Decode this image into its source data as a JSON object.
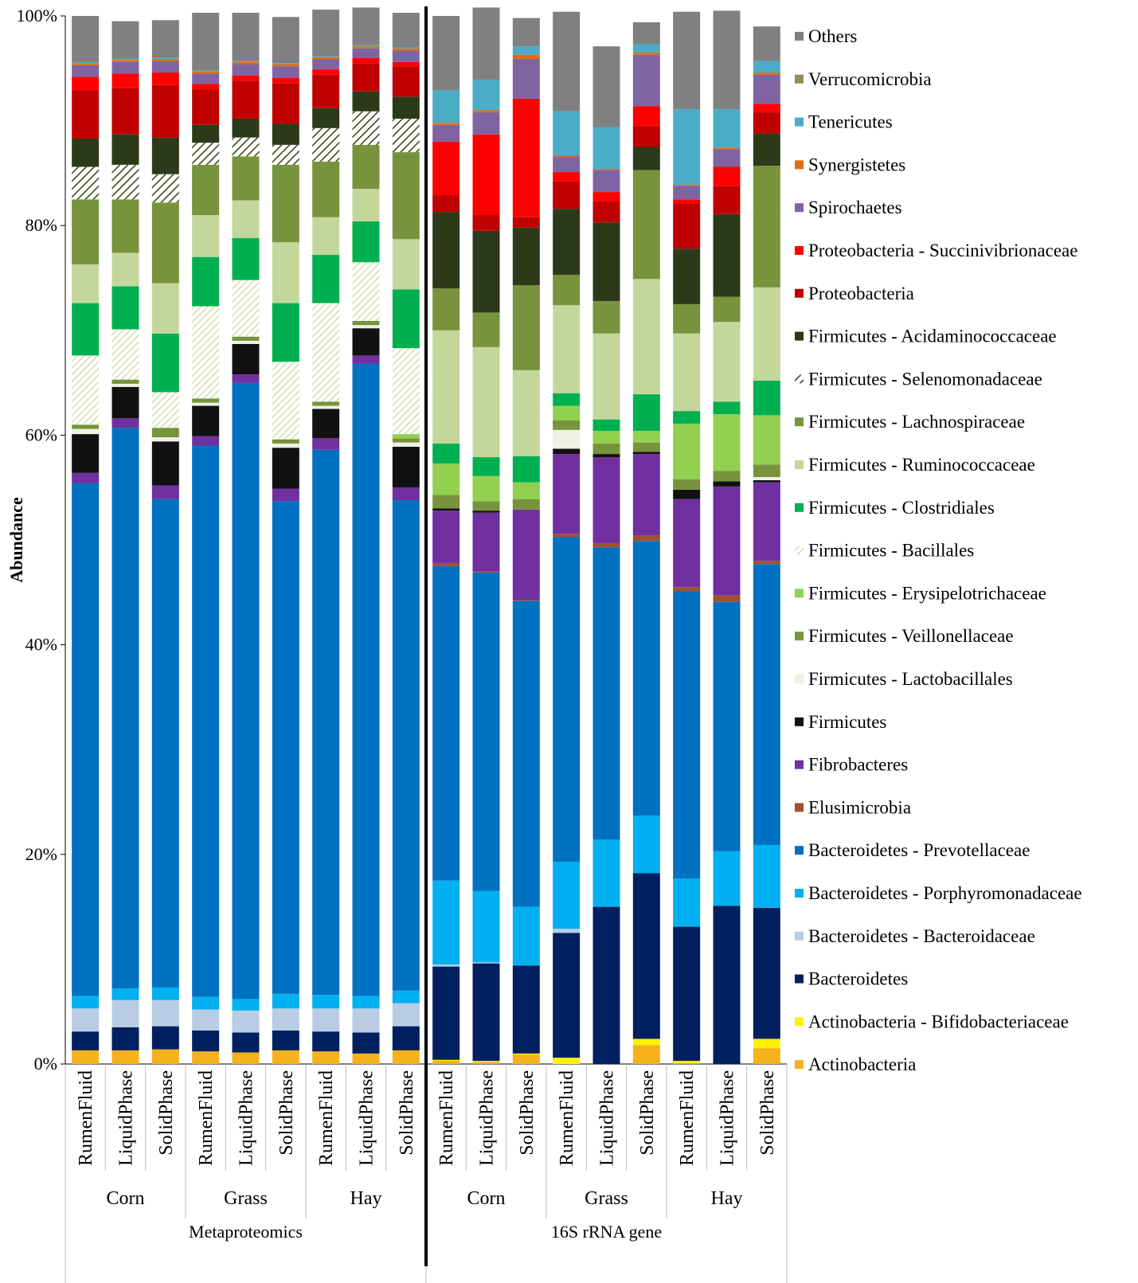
{
  "chart_data": {
    "type": "bar",
    "stacked": true,
    "ylabel": "Abundance",
    "ylim": [
      0,
      100
    ],
    "yticks": [
      "0%",
      "20%",
      "40%",
      "60%",
      "80%",
      "100%"
    ],
    "categories": [
      {
        "method": "Metaproteomics",
        "diet": "Corn",
        "phase": "RumenFluid"
      },
      {
        "method": "Metaproteomics",
        "diet": "Corn",
        "phase": "LiquidPhase"
      },
      {
        "method": "Metaproteomics",
        "diet": "Corn",
        "phase": "SolidPhase"
      },
      {
        "method": "Metaproteomics",
        "diet": "Grass",
        "phase": "RumenFluid"
      },
      {
        "method": "Metaproteomics",
        "diet": "Grass",
        "phase": "LiquidPhase"
      },
      {
        "method": "Metaproteomics",
        "diet": "Grass",
        "phase": "SolidPhase"
      },
      {
        "method": "Metaproteomics",
        "diet": "Hay",
        "phase": "RumenFluid"
      },
      {
        "method": "Metaproteomics",
        "diet": "Hay",
        "phase": "LiquidPhase"
      },
      {
        "method": "Metaproteomics",
        "diet": "Hay",
        "phase": "SolidPhase"
      },
      {
        "method": "16S rRNA gene",
        "diet": "Corn",
        "phase": "RumenFluid"
      },
      {
        "method": "16S rRNA gene",
        "diet": "Corn",
        "phase": "LiquidPhase"
      },
      {
        "method": "16S rRNA gene",
        "diet": "Corn",
        "phase": "SolidPhase"
      },
      {
        "method": "16S rRNA gene",
        "diet": "Grass",
        "phase": "RumenFluid"
      },
      {
        "method": "16S rRNA gene",
        "diet": "Grass",
        "phase": "LiquidPhase"
      },
      {
        "method": "16S rRNA gene",
        "diet": "Grass",
        "phase": "SolidPhase"
      },
      {
        "method": "16S rRNA gene",
        "diet": "Hay",
        "phase": "RumenFluid"
      },
      {
        "method": "16S rRNA gene",
        "diet": "Hay",
        "phase": "LiquidPhase"
      },
      {
        "method": "16S rRNA gene",
        "diet": "Hay",
        "phase": "SolidPhase"
      }
    ],
    "diet_groups": [
      {
        "label": "Corn"
      },
      {
        "label": "Grass"
      },
      {
        "label": "Hay"
      },
      {
        "label": "Corn"
      },
      {
        "label": "Grass"
      },
      {
        "label": "Hay"
      }
    ],
    "method_groups": [
      {
        "label": "Metaproteomics"
      },
      {
        "label": "16S rRNA gene"
      }
    ],
    "series": [
      {
        "name": "Actinobacteria",
        "color": "#F5B21C",
        "pattern": "solid",
        "values": [
          1.3,
          1.3,
          1.4,
          1.2,
          1.1,
          1.3,
          1.2,
          1.0,
          1.3,
          0.3,
          0.2,
          0.9,
          0.0,
          0.0,
          1.8,
          0.1,
          0.0,
          1.5
        ]
      },
      {
        "name": "Actinobacteria - Bifidobacteriaceae",
        "color": "#FFF200",
        "pattern": "solid",
        "values": [
          0,
          0,
          0,
          0,
          0,
          0,
          0,
          0,
          0,
          0.1,
          0.1,
          0.1,
          0.6,
          0.0,
          0.6,
          0.2,
          0.0,
          0.9
        ]
      },
      {
        "name": "Bacteroidetes",
        "color": "#002060",
        "pattern": "solid",
        "values": [
          1.8,
          2.2,
          2.2,
          2.0,
          1.9,
          1.9,
          1.9,
          2.0,
          2.3,
          8.9,
          9.3,
          8.4,
          11.9,
          15.0,
          15.8,
          12.8,
          15.1,
          12.5
        ]
      },
      {
        "name": "Bacteroidetes - Bacteroidaceae",
        "color": "#B8CCE4",
        "pattern": "solid",
        "values": [
          2.2,
          2.6,
          2.5,
          2.0,
          2.1,
          2.1,
          2.2,
          2.3,
          2.2,
          0.2,
          0.1,
          0.0,
          0.4,
          0.0,
          0.0,
          0.0,
          0.0,
          0.0
        ]
      },
      {
        "name": "Bacteroidetes - Porphyromonadaceae",
        "color": "#00B0F0",
        "pattern": "solid",
        "values": [
          1.2,
          1.1,
          1.2,
          1.2,
          1.1,
          1.4,
          1.3,
          1.2,
          1.2,
          8.0,
          6.8,
          5.6,
          6.4,
          6.4,
          5.5,
          4.6,
          5.2,
          6.0
        ]
      },
      {
        "name": "Bacteroidetes - Prevotellaceae",
        "color": "#0070C0",
        "pattern": "solid",
        "values": [
          48.9,
          53.5,
          46.6,
          52.6,
          58.8,
          47.0,
          52.0,
          60.3,
          46.8,
          30.0,
          30.4,
          29.2,
          31.0,
          27.9,
          26.2,
          27.4,
          23.8,
          26.8
        ]
      },
      {
        "name": "Elusimicrobia",
        "color": "#A0522D",
        "pattern": "solid",
        "values": [
          0,
          0,
          0,
          0,
          0,
          0,
          0,
          0,
          0,
          0.3,
          0.1,
          0.1,
          0.3,
          0.4,
          0.5,
          0.4,
          0.6,
          0.3
        ]
      },
      {
        "name": "Fibrobacteres",
        "color": "#7030A0",
        "pattern": "solid",
        "values": [
          1.0,
          0.9,
          1.3,
          0.9,
          0.8,
          1.2,
          1.1,
          0.8,
          1.2,
          5.0,
          5.6,
          8.6,
          7.6,
          8.2,
          7.8,
          8.4,
          10.4,
          7.5
        ]
      },
      {
        "name": "Firmicutes",
        "color": "#111111",
        "pattern": "solid",
        "values": [
          3.7,
          3.0,
          4.2,
          2.9,
          2.9,
          3.9,
          2.8,
          2.6,
          3.9,
          0.2,
          0.2,
          0.0,
          0.5,
          0.3,
          0.2,
          0.9,
          0.5,
          0.2
        ]
      },
      {
        "name": "Firmicutes - Lactobacillales",
        "color": "#EEF2E2",
        "pattern": "solid",
        "values": [
          0.5,
          0.3,
          0.4,
          0.3,
          0.3,
          0.4,
          0.3,
          0.3,
          0.4,
          0.0,
          0.0,
          0.0,
          1.8,
          0.0,
          0.0,
          0.0,
          0.0,
          0.3
        ]
      },
      {
        "name": "Firmicutes - Veillonellaceae",
        "color": "#77933C",
        "pattern": "solid",
        "values": [
          0.4,
          0.4,
          0.9,
          0.4,
          0.4,
          0.4,
          0.4,
          0.4,
          0.4,
          1.3,
          0.9,
          1.0,
          0.9,
          1.0,
          0.9,
          1.0,
          1.0,
          1.2
        ]
      },
      {
        "name": "Firmicutes - Erysipelotrichaceae",
        "color": "#92D050",
        "pattern": "solid",
        "values": [
          0,
          0,
          0,
          0,
          0,
          0,
          0,
          0,
          0.4,
          3.0,
          2.4,
          1.6,
          1.4,
          1.2,
          1.1,
          5.3,
          5.4,
          4.7
        ]
      },
      {
        "name": "Firmicutes - Bacillales",
        "color": "#D6E3BC",
        "pattern": "hatch",
        "values": [
          6.6,
          4.8,
          3.4,
          8.8,
          5.4,
          7.4,
          9.4,
          5.6,
          8.2,
          0.0,
          0.0,
          0.0,
          0.0,
          0.0,
          0.0,
          0.0,
          0.0,
          0.0
        ]
      },
      {
        "name": "Firmicutes - Clostridiales",
        "color": "#00B050",
        "pattern": "solid",
        "values": [
          5.0,
          4.1,
          5.6,
          4.7,
          4.0,
          5.6,
          4.6,
          3.9,
          5.6,
          1.9,
          1.8,
          2.5,
          1.2,
          1.1,
          3.5,
          1.2,
          1.2,
          3.3
        ]
      },
      {
        "name": "Firmicutes - Ruminococcaceae",
        "color": "#C4D79B",
        "pattern": "solid",
        "values": [
          3.7,
          3.2,
          4.8,
          4.0,
          3.6,
          5.8,
          3.6,
          3.1,
          4.8,
          10.8,
          10.5,
          8.2,
          8.4,
          8.2,
          11.0,
          7.4,
          7.6,
          8.9
        ]
      },
      {
        "name": "Firmicutes - Lachnospiraceae",
        "color": "#77933C",
        "pattern": "solid",
        "values": [
          6.2,
          5.1,
          7.7,
          4.8,
          4.2,
          7.4,
          5.3,
          4.2,
          8.3,
          4.0,
          3.3,
          8.1,
          2.9,
          3.1,
          10.4,
          2.8,
          2.4,
          11.6
        ]
      },
      {
        "name": "Firmicutes - Selenomonadaceae",
        "color": "#3B4A1E",
        "pattern": "diag",
        "values": [
          3.1,
          3.3,
          2.7,
          2.1,
          1.8,
          1.9,
          3.2,
          3.2,
          3.2,
          0.0,
          0.0,
          0.0,
          0.0,
          0.0,
          0.0,
          0.0,
          0.0,
          0.0
        ]
      },
      {
        "name": "Firmicutes - Acidaminococcaceae",
        "color": "#2D3A1A",
        "pattern": "solid",
        "values": [
          2.7,
          2.9,
          3.5,
          1.7,
          1.8,
          2.0,
          1.9,
          1.9,
          2.1,
          7.3,
          7.8,
          5.5,
          6.3,
          7.5,
          2.2,
          5.3,
          7.9,
          3.1
        ]
      },
      {
        "name": "Proteobacteria",
        "color": "#C00000",
        "pattern": "solid",
        "values": [
          4.6,
          4.4,
          5.0,
          3.4,
          3.6,
          3.9,
          3.2,
          2.7,
          2.9,
          1.6,
          1.5,
          1.0,
          2.6,
          2.0,
          2.0,
          4.3,
          2.7,
          2.0
        ]
      },
      {
        "name": "Proteobacteria - Succinivibrionaceae",
        "color": "#FF0000",
        "pattern": "solid",
        "values": [
          1.3,
          1.4,
          1.2,
          0.5,
          0.5,
          0.5,
          0.5,
          0.5,
          0.4,
          5.1,
          7.7,
          11.3,
          0.9,
          0.9,
          1.9,
          0.4,
          1.8,
          0.8
        ]
      },
      {
        "name": "Spirochaetes",
        "color": "#8064A2",
        "pattern": "solid",
        "values": [
          1.1,
          1.1,
          1.1,
          1.0,
          1.1,
          1.1,
          1.0,
          0.9,
          1.1,
          1.6,
          2.1,
          3.8,
          1.5,
          2.1,
          4.9,
          1.3,
          1.7,
          2.8
        ]
      },
      {
        "name": "Synergistetes",
        "color": "#E46C0A",
        "pattern": "solid",
        "values": [
          0.2,
          0.2,
          0.2,
          0.2,
          0.2,
          0.2,
          0.2,
          0.2,
          0.2,
          0.2,
          0.2,
          0.4,
          0.1,
          0.1,
          0.2,
          0.1,
          0.1,
          0.2
        ]
      },
      {
        "name": "Tenericutes",
        "color": "#4BACC6",
        "pattern": "solid",
        "values": [
          0.1,
          0.1,
          0.1,
          0.1,
          0.1,
          0.1,
          0.1,
          0.1,
          0.1,
          3.1,
          2.9,
          0.8,
          4.2,
          4.0,
          0.8,
          7.2,
          3.7,
          1.1
        ]
      },
      {
        "name": "Verrucomicrobia",
        "color": "#948A54",
        "pattern": "solid",
        "values": [
          0,
          0,
          0,
          0,
          0,
          0,
          0,
          0,
          0,
          0,
          0,
          0,
          0,
          0,
          0,
          0,
          0,
          0
        ]
      },
      {
        "name": "Others",
        "color": "#808080",
        "pattern": "solid",
        "values": [
          4.4,
          3.6,
          3.6,
          5.5,
          4.6,
          4.4,
          4.4,
          3.6,
          3.3,
          7.1,
          6.9,
          2.7,
          9.5,
          7.7,
          2.1,
          9.3,
          9.4,
          3.3
        ]
      }
    ]
  }
}
